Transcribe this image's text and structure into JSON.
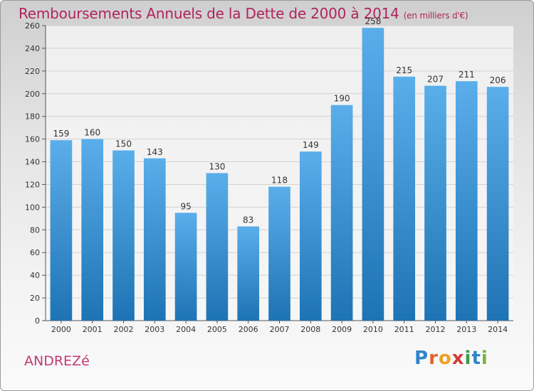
{
  "title": "Remboursements Annuels de la Dette de 2000 à 2014",
  "subtitle": "(en milliers d'€)",
  "commune": "ANDREZé",
  "logo": {
    "p": "P",
    "r": "r",
    "o": "o",
    "x": "x",
    "i": "i",
    "t": "t",
    "i2": "i"
  },
  "colors": {
    "bar_top": "#5aaeea",
    "bar_bottom": "#1e73b4",
    "title": "#b0245c"
  },
  "chart_data": {
    "type": "bar",
    "title": "Remboursements Annuels de la Dette de 2000 à 2014",
    "ylabel": "en milliers d'€",
    "categories": [
      "2000",
      "2001",
      "2002",
      "2003",
      "2004",
      "2005",
      "2006",
      "2007",
      "2008",
      "2009",
      "2010",
      "2011",
      "2012",
      "2013",
      "2014"
    ],
    "values": [
      159,
      160,
      150,
      143,
      95,
      130,
      83,
      118,
      149,
      190,
      258,
      215,
      207,
      211,
      206
    ],
    "ylim": [
      0,
      260
    ],
    "yticks": [
      0,
      20,
      40,
      60,
      80,
      100,
      120,
      140,
      160,
      180,
      200,
      220,
      240,
      260
    ],
    "grid": true
  }
}
